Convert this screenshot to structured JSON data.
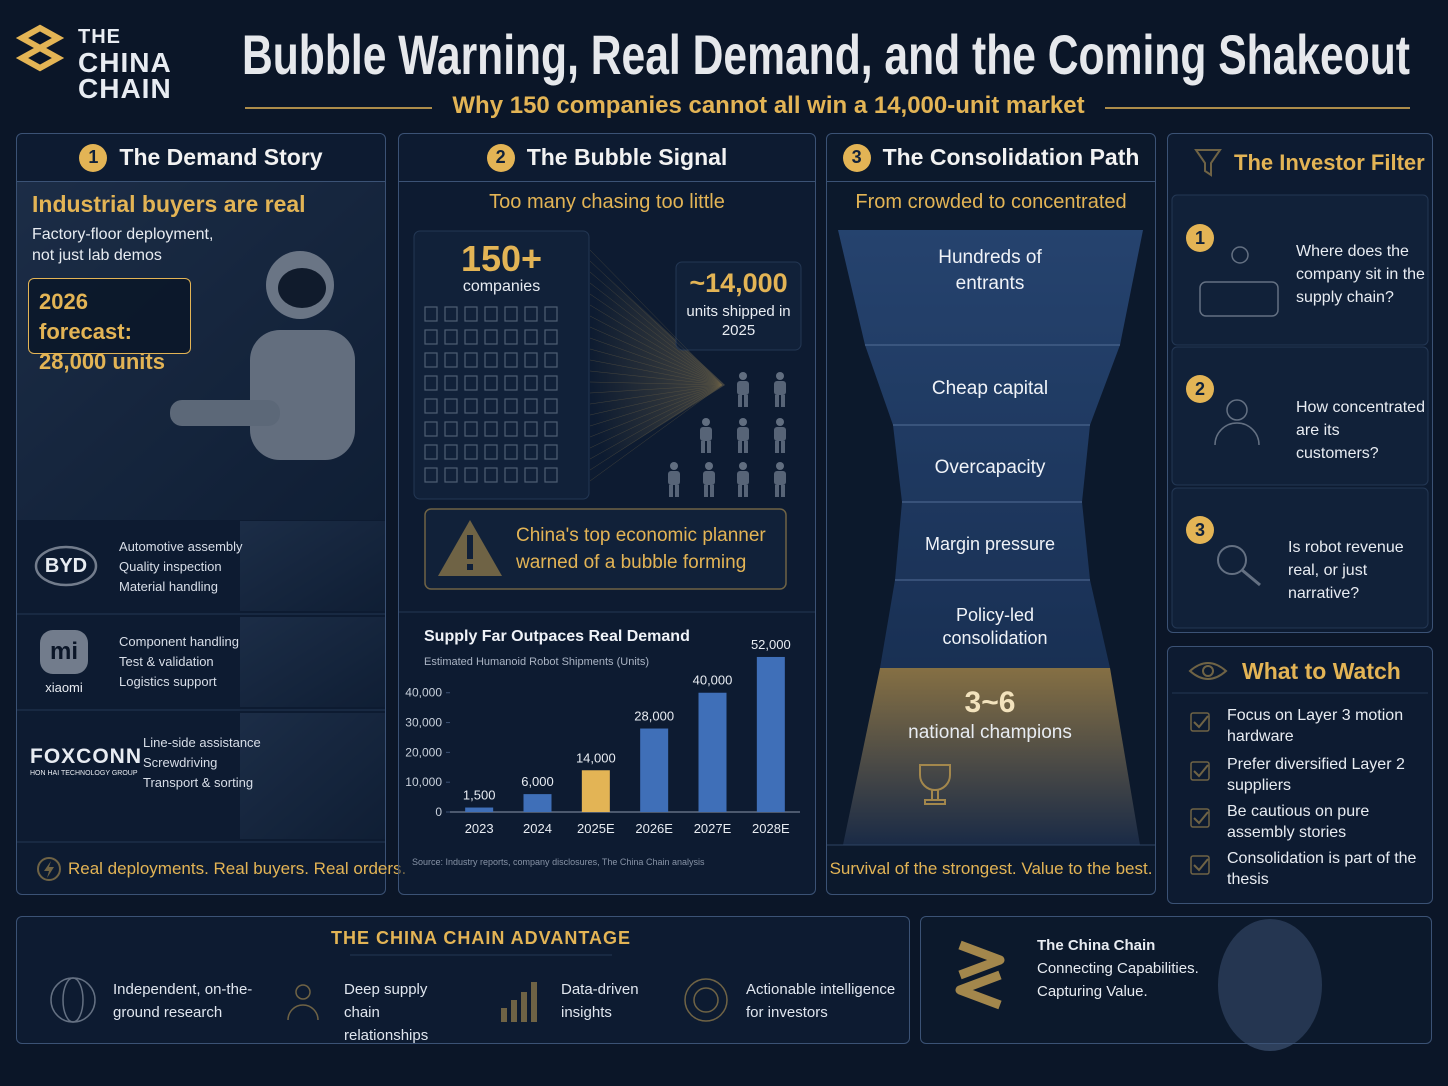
{
  "header": {
    "brand": [
      "THE",
      "CHINA",
      "CHAIN"
    ],
    "title": "Bubble Warning, Real Demand, and the Coming Shakeout",
    "subtitle": "Why 150 companies cannot all win a 14,000-unit market"
  },
  "demand_story": {
    "number": 1,
    "title": "The Demand Story",
    "heading": "Industrial buyers are real",
    "subheading": "Factory-floor deployment, not just lab demos",
    "forecast": [
      "2026 forecast:",
      "28,000 units"
    ],
    "companies": [
      {
        "logo": "BYD",
        "tasks": [
          "Automotive assembly",
          "Quality inspection",
          "Material handling"
        ]
      },
      {
        "logo": "mi",
        "caption": "xiaomi",
        "tasks": [
          "Component handling",
          "Test & validation",
          "Logistics support"
        ]
      },
      {
        "logo": "FOXCONN",
        "caption": "HON HAI TECHNOLOGY GROUP",
        "tasks": [
          "Line-side assistance",
          "Screwdriving",
          "Transport & sorting"
        ]
      }
    ],
    "footer": "Real deployments. Real buyers. Real orders."
  },
  "bubble_signal": {
    "number": 2,
    "title": "The Bubble Signal",
    "heading": "Too many chasing too little",
    "companies": {
      "count": "150+",
      "label": "companies"
    },
    "shipped": {
      "count": "~14,000",
      "label": "units shipped in 2025"
    },
    "warning": "China's top economic planner warned of a bubble forming"
  },
  "chart_data": {
    "type": "bar",
    "title": "Supply Far Outpaces Real Demand",
    "subtitle": "Estimated Humanoid Robot Shipments (Units)",
    "categories": [
      "2023",
      "2024",
      "2025E",
      "2026E",
      "2027E",
      "2028E"
    ],
    "values": [
      1500,
      6000,
      14000,
      28000,
      40000,
      52000
    ],
    "value_labels": [
      "1,500",
      "6,000",
      "14,000",
      "28,000",
      "40,000",
      "52,000"
    ],
    "colors": [
      "#3f6fb8",
      "#3f6fb8",
      "#e3b455",
      "#3f6fb8",
      "#3f6fb8",
      "#3f6fb8"
    ],
    "ylim": [
      0,
      54000
    ],
    "yticks": [
      0,
      {
        "value": 10000,
        "label": "10,000"
      },
      {
        "value": 20000,
        "label": "20,000"
      },
      {
        "value": 30000,
        "label": "30,000"
      },
      {
        "value": 40000,
        "label": "40,000"
      }
    ],
    "source": "Source: Industry reports, company disclosures, The China Chain analysis"
  },
  "consolidation_path": {
    "number": 3,
    "title": "The Consolidation Path",
    "heading": "From crowded to concentrated",
    "stages": [
      "Hundreds of entrants",
      "Cheap capital",
      "Overcapacity",
      "Margin pressure",
      "Policy-led consolidation"
    ],
    "result": "3~6",
    "result_label": "national champions",
    "footer": "Survival of the strongest. Value to the best."
  },
  "investor_filter": {
    "title": "The Investor Filter",
    "questions": [
      {
        "number": 1,
        "text": "Where does the company sit in the supply chain?"
      },
      {
        "number": 2,
        "text": "How concentrated are its customers?"
      },
      {
        "number": 3,
        "text": "Is robot revenue real, or just narrative?"
      }
    ]
  },
  "what_to_watch": {
    "title": "What to Watch",
    "items": [
      "Focus on Layer 3 motion hardware",
      "Prefer diversified Layer 2 suppliers",
      "Be cautious on pure assembly stories",
      "Consolidation is part of the thesis"
    ]
  },
  "advantage": {
    "title": "THE CHINA CHAIN ADVANTAGE",
    "items": [
      "Independent, on-the-ground research",
      "Deep supply chain relationships",
      "Data-driven insights",
      "Actionable intelligence for investors"
    ]
  },
  "brand_card": {
    "name": "The China Chain",
    "tagline": [
      "Connecting Capabilities.",
      "Capturing Value."
    ]
  }
}
